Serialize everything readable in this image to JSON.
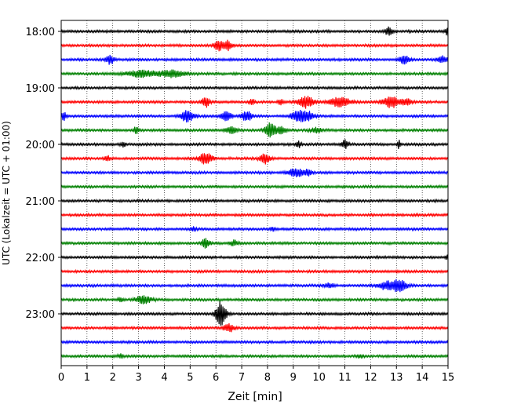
{
  "chart_data": {
    "type": "line",
    "subtype": "helicorder-seismogram",
    "xlabel": "Zeit  [min]",
    "ylabel": "UTC (Lokalzeit = UTC + 01:00)",
    "xlim": [
      0,
      15
    ],
    "x_ticks": [
      "0",
      "1",
      "2",
      "3",
      "4",
      "5",
      "6",
      "7",
      "8",
      "9",
      "10",
      "11",
      "12",
      "13",
      "14",
      "15"
    ],
    "y_tick_labels": [
      "18:00",
      "19:00",
      "20:00",
      "21:00",
      "22:00",
      "23:00"
    ],
    "grid": "vertical-dotted",
    "trace_minutes": 15,
    "color_cycle": [
      "#000000",
      "#ff0000",
      "#0000ff",
      "#008000"
    ],
    "traces": [
      {
        "start": "18:00",
        "color": "#000000",
        "events": [
          [
            12.7,
            0.6,
            0.15
          ],
          [
            15.0,
            0.7,
            0.1
          ]
        ]
      },
      {
        "start": "18:15",
        "color": "#ff0000",
        "events": [
          [
            6.1,
            0.9,
            0.15
          ],
          [
            6.45,
            0.8,
            0.15
          ]
        ]
      },
      {
        "start": "18:30",
        "color": "#0000ff",
        "events": [
          [
            1.9,
            0.7,
            0.15
          ],
          [
            13.3,
            0.6,
            0.2
          ],
          [
            14.8,
            0.5,
            0.2
          ]
        ]
      },
      {
        "start": "18:45",
        "color": "#008000",
        "events": [
          [
            3.1,
            0.5,
            0.6
          ],
          [
            4.3,
            0.5,
            0.5
          ]
        ]
      },
      {
        "start": "19:00",
        "color": "#000000",
        "events": []
      },
      {
        "start": "19:15",
        "color": "#ff0000",
        "events": [
          [
            5.6,
            0.8,
            0.15
          ],
          [
            7.4,
            0.5,
            0.1
          ],
          [
            8.5,
            0.4,
            0.1
          ],
          [
            9.5,
            0.9,
            0.3
          ],
          [
            10.8,
            0.7,
            0.4
          ],
          [
            12.8,
            0.9,
            0.3
          ],
          [
            13.4,
            0.5,
            0.2
          ]
        ]
      },
      {
        "start": "19:30",
        "color": "#0000ff",
        "events": [
          [
            0.1,
            0.6,
            0.1
          ],
          [
            4.9,
            0.9,
            0.25
          ],
          [
            6.4,
            0.7,
            0.2
          ],
          [
            7.2,
            0.8,
            0.2
          ],
          [
            9.2,
            1.0,
            0.25
          ],
          [
            9.6,
            0.7,
            0.2
          ]
        ]
      },
      {
        "start": "19:45",
        "color": "#008000",
        "events": [
          [
            2.9,
            0.5,
            0.1
          ],
          [
            6.6,
            0.5,
            0.2
          ],
          [
            8.1,
            1.1,
            0.2
          ],
          [
            8.5,
            0.5,
            0.2
          ],
          [
            9.9,
            0.4,
            0.2
          ]
        ]
      },
      {
        "start": "20:00",
        "color": "#000000",
        "events": [
          [
            2.4,
            0.4,
            0.08
          ],
          [
            9.2,
            0.5,
            0.1
          ],
          [
            11.0,
            0.7,
            0.12
          ],
          [
            13.1,
            0.7,
            0.05
          ]
        ]
      },
      {
        "start": "20:15",
        "color": "#ff0000",
        "events": [
          [
            1.8,
            0.4,
            0.1
          ],
          [
            5.6,
            0.9,
            0.25
          ],
          [
            7.9,
            0.8,
            0.2
          ]
        ]
      },
      {
        "start": "20:30",
        "color": "#0000ff",
        "events": [
          [
            9.1,
            0.7,
            0.3
          ],
          [
            9.6,
            0.5,
            0.15
          ]
        ]
      },
      {
        "start": "20:45",
        "color": "#008000",
        "events": []
      },
      {
        "start": "21:00",
        "color": "#000000",
        "events": []
      },
      {
        "start": "21:15",
        "color": "#ff0000",
        "events": []
      },
      {
        "start": "21:30",
        "color": "#0000ff",
        "events": [
          [
            5.1,
            0.3,
            0.1
          ],
          [
            8.2,
            0.3,
            0.1
          ]
        ]
      },
      {
        "start": "21:45",
        "color": "#008000",
        "events": [
          [
            5.6,
            0.8,
            0.15
          ],
          [
            6.7,
            0.4,
            0.15
          ]
        ]
      },
      {
        "start": "22:00",
        "color": "#000000",
        "events": [
          [
            15.0,
            0.5,
            0.1
          ]
        ]
      },
      {
        "start": "22:15",
        "color": "#ff0000",
        "events": []
      },
      {
        "start": "22:30",
        "color": "#0000ff",
        "events": [
          [
            10.4,
            0.3,
            0.2
          ],
          [
            12.6,
            0.6,
            0.3
          ],
          [
            13.1,
            0.9,
            0.3
          ]
        ]
      },
      {
        "start": "22:45",
        "color": "#008000",
        "events": [
          [
            2.3,
            0.3,
            0.1
          ],
          [
            3.2,
            0.6,
            0.3
          ]
        ]
      },
      {
        "start": "23:00",
        "color": "#000000",
        "events": [
          [
            6.2,
            2.0,
            0.2
          ]
        ]
      },
      {
        "start": "23:15",
        "color": "#ff0000",
        "events": [
          [
            6.5,
            0.6,
            0.2
          ]
        ]
      },
      {
        "start": "23:30",
        "color": "#0000ff",
        "events": []
      },
      {
        "start": "23:45",
        "color": "#008000",
        "events": [
          [
            2.3,
            0.3,
            0.1
          ],
          [
            11.6,
            0.3,
            0.1
          ]
        ]
      }
    ]
  }
}
